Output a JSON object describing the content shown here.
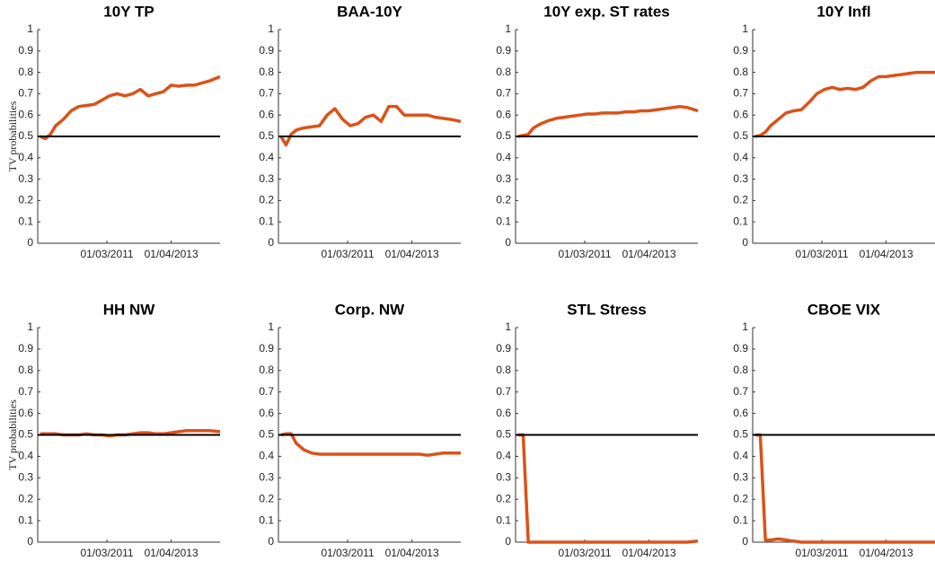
{
  "chart_data": [
    {
      "type": "line",
      "title": "10Y TP",
      "ylabel": "TV probabilities",
      "x": [
        "01/01/2009",
        "01/03/2009",
        "01/05/2009",
        "01/07/2009",
        "01/10/2009",
        "01/01/2010",
        "01/04/2010",
        "01/07/2010",
        "01/10/2010",
        "01/01/2011",
        "01/04/2011",
        "01/07/2011",
        "01/10/2011",
        "01/01/2012",
        "01/04/2012",
        "01/07/2012",
        "01/10/2012",
        "01/01/2013",
        "01/04/2013",
        "01/07/2013",
        "01/10/2013",
        "01/01/2014",
        "01/04/2014",
        "01/07/2014",
        "01/11/2014"
      ],
      "values": [
        0.5,
        0.49,
        0.51,
        0.55,
        0.58,
        0.62,
        0.64,
        0.645,
        0.65,
        0.67,
        0.69,
        0.7,
        0.69,
        0.7,
        0.72,
        0.69,
        0.7,
        0.71,
        0.74,
        0.735,
        0.74,
        0.74,
        0.75,
        0.76,
        0.78
      ],
      "color": "#d95319",
      "reference_line": 0.5,
      "reference_color": "#000000",
      "xlim": [
        "01/12/2008",
        "01/11/2014"
      ],
      "xticks": [
        "01/03/2011",
        "01/04/2013"
      ],
      "ylim": [
        0,
        1
      ],
      "yticks": [
        0,
        0.1,
        0.2,
        0.3,
        0.4,
        0.5,
        0.6,
        0.7,
        0.8,
        0.9,
        1
      ]
    },
    {
      "type": "line",
      "title": "BAA-10Y",
      "x": [
        "01/01/2009",
        "01/03/2009",
        "01/05/2009",
        "01/07/2009",
        "01/10/2009",
        "01/01/2010",
        "01/04/2010",
        "01/07/2010",
        "01/10/2010",
        "01/01/2011",
        "01/04/2011",
        "01/07/2011",
        "01/10/2011",
        "01/01/2012",
        "01/04/2012",
        "01/07/2012",
        "01/10/2012",
        "01/01/2013",
        "01/04/2013",
        "01/07/2013",
        "01/10/2013",
        "01/01/2014",
        "01/04/2014",
        "01/07/2014",
        "01/11/2014"
      ],
      "values": [
        0.5,
        0.46,
        0.51,
        0.53,
        0.54,
        0.545,
        0.55,
        0.6,
        0.63,
        0.58,
        0.55,
        0.56,
        0.59,
        0.6,
        0.57,
        0.64,
        0.64,
        0.6,
        0.6,
        0.6,
        0.6,
        0.59,
        0.585,
        0.58,
        0.57
      ],
      "color": "#d95319",
      "reference_line": 0.5,
      "reference_color": "#000000",
      "xlim": [
        "01/12/2008",
        "01/11/2014"
      ],
      "xticks": [
        "01/03/2011",
        "01/04/2013"
      ],
      "ylim": [
        0,
        1
      ],
      "yticks": [
        0,
        0.1,
        0.2,
        0.3,
        0.4,
        0.5,
        0.6,
        0.7,
        0.8,
        0.9,
        1
      ]
    },
    {
      "type": "line",
      "title": "10Y exp. ST rates",
      "x": [
        "01/01/2009",
        "01/03/2009",
        "01/05/2009",
        "01/07/2009",
        "01/10/2009",
        "01/01/2010",
        "01/04/2010",
        "01/07/2010",
        "01/10/2010",
        "01/01/2011",
        "01/04/2011",
        "01/07/2011",
        "01/10/2011",
        "01/01/2012",
        "01/04/2012",
        "01/07/2012",
        "01/10/2012",
        "01/01/2013",
        "01/04/2013",
        "01/07/2013",
        "01/10/2013",
        "01/01/2014",
        "01/04/2014",
        "01/07/2014",
        "01/11/2014"
      ],
      "values": [
        0.5,
        0.505,
        0.51,
        0.54,
        0.56,
        0.575,
        0.585,
        0.59,
        0.595,
        0.6,
        0.605,
        0.605,
        0.61,
        0.61,
        0.61,
        0.615,
        0.615,
        0.62,
        0.62,
        0.625,
        0.63,
        0.635,
        0.64,
        0.635,
        0.62
      ],
      "color": "#d95319",
      "reference_line": 0.5,
      "reference_color": "#000000",
      "xlim": [
        "01/12/2008",
        "01/11/2014"
      ],
      "xticks": [
        "01/03/2011",
        "01/04/2013"
      ],
      "ylim": [
        0,
        1
      ],
      "yticks": [
        0,
        0.1,
        0.2,
        0.3,
        0.4,
        0.5,
        0.6,
        0.7,
        0.8,
        0.9,
        1
      ]
    },
    {
      "type": "line",
      "title": "10Y Infl",
      "x": [
        "01/01/2009",
        "01/03/2009",
        "01/05/2009",
        "01/07/2009",
        "01/10/2009",
        "01/01/2010",
        "01/04/2010",
        "01/07/2010",
        "01/10/2010",
        "01/01/2011",
        "01/04/2011",
        "01/07/2011",
        "01/10/2011",
        "01/01/2012",
        "01/04/2012",
        "01/07/2012",
        "01/10/2012",
        "01/01/2013",
        "01/04/2013",
        "01/07/2013",
        "01/10/2013",
        "01/01/2014",
        "01/04/2014",
        "01/07/2014",
        "01/11/2014"
      ],
      "values": [
        0.5,
        0.505,
        0.52,
        0.55,
        0.58,
        0.61,
        0.62,
        0.625,
        0.66,
        0.7,
        0.72,
        0.73,
        0.72,
        0.725,
        0.72,
        0.73,
        0.76,
        0.78,
        0.78,
        0.785,
        0.79,
        0.795,
        0.8,
        0.8,
        0.8
      ],
      "color": "#d95319",
      "reference_line": 0.5,
      "reference_color": "#000000",
      "xlim": [
        "01/12/2008",
        "01/11/2014"
      ],
      "xticks": [
        "01/03/2011",
        "01/04/2013"
      ],
      "ylim": [
        0,
        1
      ],
      "yticks": [
        0,
        0.1,
        0.2,
        0.3,
        0.4,
        0.5,
        0.6,
        0.7,
        0.8,
        0.9,
        1
      ]
    },
    {
      "type": "line",
      "title": "HH NW",
      "ylabel": "TV probabilities",
      "x": [
        "01/01/2009",
        "01/03/2009",
        "01/05/2009",
        "01/07/2009",
        "01/10/2009",
        "01/01/2010",
        "01/04/2010",
        "01/07/2010",
        "01/10/2010",
        "01/01/2011",
        "01/04/2011",
        "01/07/2011",
        "01/10/2011",
        "01/01/2012",
        "01/04/2012",
        "01/07/2012",
        "01/10/2012",
        "01/01/2013",
        "01/04/2013",
        "01/07/2013",
        "01/10/2013",
        "01/01/2014",
        "01/04/2014",
        "01/07/2014",
        "01/11/2014"
      ],
      "values": [
        0.505,
        0.505,
        0.505,
        0.505,
        0.5,
        0.5,
        0.5,
        0.505,
        0.5,
        0.5,
        0.495,
        0.5,
        0.5,
        0.505,
        0.51,
        0.51,
        0.505,
        0.505,
        0.51,
        0.515,
        0.52,
        0.52,
        0.52,
        0.52,
        0.515
      ],
      "color": "#d95319",
      "reference_line": 0.5,
      "reference_color": "#000000",
      "xlim": [
        "01/12/2008",
        "01/11/2014"
      ],
      "xticks": [
        "01/03/2011",
        "01/04/2013"
      ],
      "ylim": [
        0,
        1
      ],
      "yticks": [
        0,
        0.1,
        0.2,
        0.3,
        0.4,
        0.5,
        0.6,
        0.7,
        0.8,
        0.9,
        1
      ]
    },
    {
      "type": "line",
      "title": "Corp. NW",
      "x": [
        "01/01/2009",
        "01/03/2009",
        "01/05/2009",
        "01/07/2009",
        "01/10/2009",
        "01/01/2010",
        "01/04/2010",
        "01/07/2010",
        "01/10/2010",
        "01/01/2011",
        "01/04/2011",
        "01/07/2011",
        "01/10/2011",
        "01/01/2012",
        "01/04/2012",
        "01/07/2012",
        "01/10/2012",
        "01/01/2013",
        "01/04/2013",
        "01/07/2013",
        "01/10/2013",
        "01/01/2014",
        "01/04/2014",
        "01/07/2014",
        "01/11/2014"
      ],
      "values": [
        0.5,
        0.505,
        0.505,
        0.46,
        0.43,
        0.415,
        0.41,
        0.41,
        0.41,
        0.41,
        0.41,
        0.41,
        0.41,
        0.41,
        0.41,
        0.41,
        0.41,
        0.41,
        0.41,
        0.41,
        0.405,
        0.41,
        0.415,
        0.415,
        0.415
      ],
      "color": "#d95319",
      "reference_line": 0.5,
      "reference_color": "#000000",
      "xlim": [
        "01/12/2008",
        "01/11/2014"
      ],
      "xticks": [
        "01/03/2011",
        "01/04/2013"
      ],
      "ylim": [
        0,
        1
      ],
      "yticks": [
        0,
        0.1,
        0.2,
        0.3,
        0.4,
        0.5,
        0.6,
        0.7,
        0.8,
        0.9,
        1
      ]
    },
    {
      "type": "line",
      "title": "STL Stress",
      "x": [
        "01/01/2009",
        "01/03/2009",
        "01/05/2009",
        "01/07/2009",
        "01/10/2009",
        "01/01/2010",
        "01/04/2010",
        "01/07/2010",
        "01/10/2010",
        "01/01/2011",
        "01/04/2011",
        "01/07/2011",
        "01/10/2011",
        "01/01/2012",
        "01/04/2012",
        "01/07/2012",
        "01/10/2012",
        "01/01/2013",
        "01/04/2013",
        "01/07/2013",
        "01/10/2013",
        "01/01/2014",
        "01/04/2014",
        "01/07/2014",
        "01/11/2014"
      ],
      "values": [
        0.5,
        0.5,
        0,
        0,
        0,
        0,
        0,
        0,
        0,
        0,
        0,
        0,
        0,
        0,
        0,
        0,
        0,
        0,
        0,
        0,
        0,
        0,
        0,
        0,
        0.005
      ],
      "color": "#d95319",
      "reference_line": 0.5,
      "reference_color": "#000000",
      "xlim": [
        "01/12/2008",
        "01/11/2014"
      ],
      "xticks": [
        "01/03/2011",
        "01/04/2013"
      ],
      "ylim": [
        0,
        1
      ],
      "yticks": [
        0,
        0.1,
        0.2,
        0.3,
        0.4,
        0.5,
        0.6,
        0.7,
        0.8,
        0.9,
        1
      ]
    },
    {
      "type": "line",
      "title": "CBOE VIX",
      "x": [
        "01/01/2009",
        "01/03/2009",
        "01/05/2009",
        "01/07/2009",
        "01/10/2009",
        "01/01/2010",
        "01/04/2010",
        "01/07/2010",
        "01/10/2010",
        "01/01/2011",
        "01/04/2011",
        "01/07/2011",
        "01/10/2011",
        "01/01/2012",
        "01/04/2012",
        "01/07/2012",
        "01/10/2012",
        "01/01/2013",
        "01/04/2013",
        "01/07/2013",
        "01/10/2013",
        "01/01/2014",
        "01/04/2014",
        "01/07/2014",
        "01/11/2014"
      ],
      "values": [
        0.5,
        0.5,
        0.01,
        0.01,
        0.015,
        0.01,
        0.005,
        0,
        0,
        0,
        0,
        0,
        0,
        0,
        0,
        0,
        0,
        0,
        0,
        0,
        0,
        0,
        0,
        0,
        0
      ],
      "color": "#d95319",
      "reference_line": 0.5,
      "reference_color": "#000000",
      "xlim": [
        "01/12/2008",
        "01/11/2014"
      ],
      "xticks": [
        "01/03/2011",
        "01/04/2013"
      ],
      "ylim": [
        0,
        1
      ],
      "yticks": [
        0,
        0.1,
        0.2,
        0.3,
        0.4,
        0.5,
        0.6,
        0.7,
        0.8,
        0.9,
        1
      ]
    }
  ]
}
